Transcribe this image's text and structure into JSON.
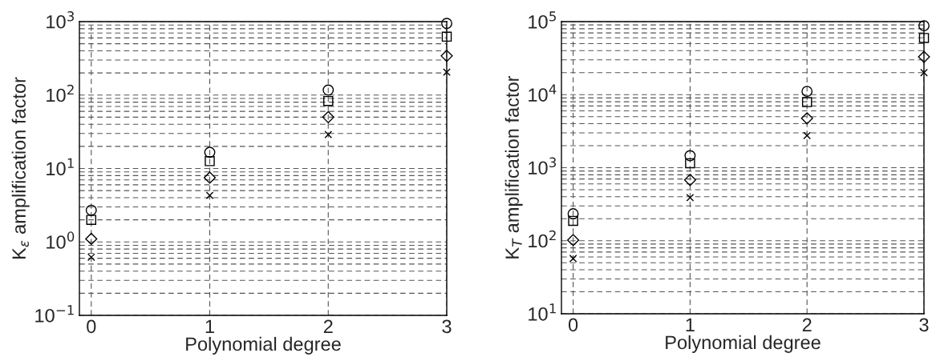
{
  "chart_data": [
    {
      "type": "scatter",
      "xlabel": "Polynomial degree",
      "ylabel": "K$_{ε}$ amplification factor",
      "x": [
        0,
        1,
        2,
        3
      ],
      "log": "y",
      "grid": true,
      "xlim": [
        -0.1,
        3
      ],
      "xticks": [
        0,
        1,
        2,
        3
      ],
      "ylim": [
        0.1,
        1000
      ],
      "yticks": [
        {
          "value": 0.1,
          "label": "10$^{−1}$"
        },
        {
          "value": 1,
          "label": "10$^{0}$"
        },
        {
          "value": 10,
          "label": "10$^{1}$"
        },
        {
          "value": 100,
          "label": "10$^{2}$"
        },
        {
          "value": 1000,
          "label": "10$^{3}$"
        }
      ],
      "series": [
        {
          "color": "#000000",
          "marker": "circle",
          "values": [
            2.7,
            16.6,
            117,
            945
          ]
        },
        {
          "color": "#000000",
          "marker": "square",
          "values": [
            2.0,
            12.6,
            83,
            624
          ]
        },
        {
          "color": "#000000",
          "marker": "diamond",
          "values": [
            1.1,
            7.5,
            50,
            341
          ]
        },
        {
          "color": "#000000",
          "marker": "cross",
          "values": [
            0.62,
            4.3,
            29,
            205
          ]
        }
      ]
    },
    {
      "type": "scatter",
      "xlabel": "Polynomial degree",
      "ylabel": "K$_{T}$ amplification factor",
      "x": [
        0,
        1,
        2,
        3
      ],
      "log": "y",
      "grid": true,
      "xlim": [
        -0.1,
        3
      ],
      "xticks": [
        0,
        1,
        2,
        3
      ],
      "ylim": [
        10,
        100000
      ],
      "yticks": [
        {
          "value": 10,
          "label": "10$^{1}$"
        },
        {
          "value": 100,
          "label": "10$^{2}$"
        },
        {
          "value": 1000,
          "label": "10$^{3}$"
        },
        {
          "value": 10000,
          "label": "10$^{4}$"
        },
        {
          "value": 100000,
          "label": "10$^{5}$"
        }
      ],
      "series": [
        {
          "color": "#000000",
          "marker": "circle",
          "values": [
            234,
            1460,
            11100,
            87900
          ]
        },
        {
          "color": "#000000",
          "marker": "square",
          "values": [
            187,
            1150,
            7900,
            59700
          ]
        },
        {
          "color": "#000000",
          "marker": "diamond",
          "values": [
            102,
            680,
            4740,
            32900
          ]
        },
        {
          "color": "#000000",
          "marker": "cross",
          "values": [
            57,
            390,
            2750,
            20000
          ]
        }
      ]
    }
  ]
}
